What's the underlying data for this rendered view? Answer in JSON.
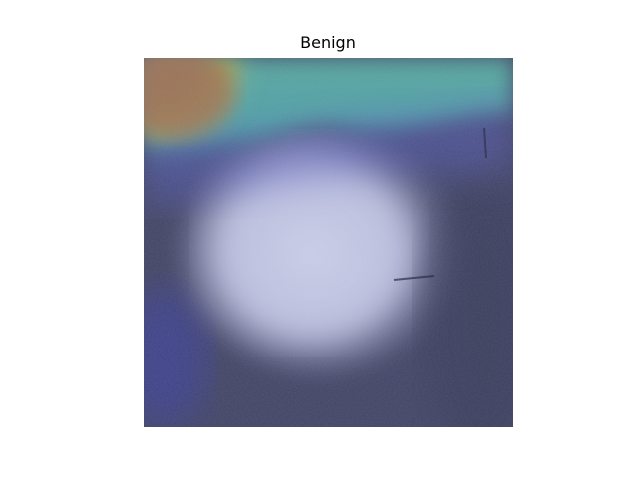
{
  "figure": {
    "title": "Benign"
  },
  "image": {
    "description_icon": "ultrasound-heatmap-overlay",
    "colors": {
      "background_dark": "#3b3f60",
      "lesion_light": "#c9cde8",
      "hotspot_brown": "#9a7a52",
      "hotspot_yellow": "#b7b24a",
      "band_cyan": "#5fb3a8",
      "band_blue": "#5a5fc0"
    }
  }
}
